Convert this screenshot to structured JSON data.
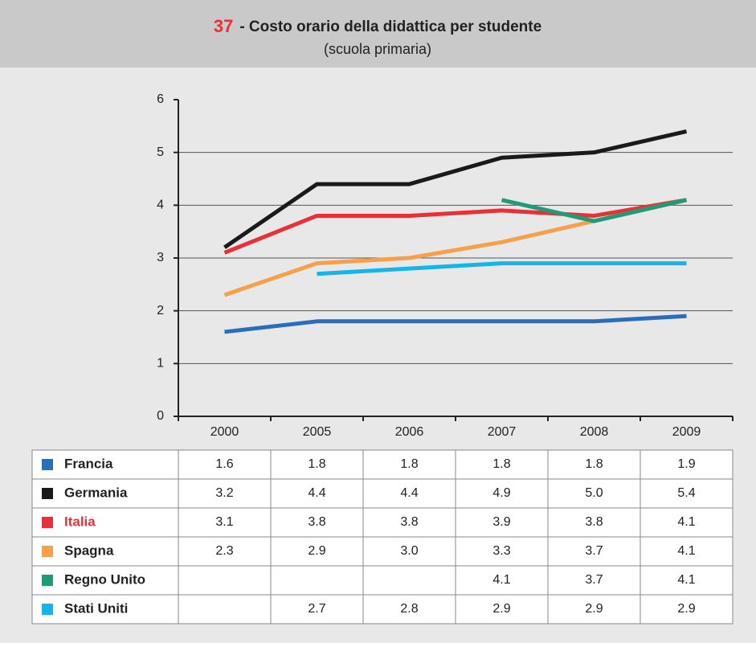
{
  "chart_data": {
    "type": "line",
    "title_number": "37",
    "title": "- Costo orario della didattica per studente",
    "subtitle": "(scuola primaria)",
    "categories": [
      "2000",
      "2005",
      "2006",
      "2007",
      "2008",
      "2009"
    ],
    "ylim": [
      0,
      6
    ],
    "yticks": [
      0,
      1,
      2,
      3,
      4,
      5,
      6
    ],
    "grid": true,
    "series": [
      {
        "name": "Francia",
        "color": "#2a6ebb",
        "values": [
          1.6,
          1.8,
          1.8,
          1.8,
          1.8,
          1.9
        ],
        "value_labels": [
          "1.6",
          "1.8",
          "1.8",
          "1.8",
          "1.8",
          "1.9"
        ]
      },
      {
        "name": "Germania",
        "color": "#1a1a1a",
        "values": [
          3.2,
          4.4,
          4.4,
          4.9,
          5.0,
          5.4
        ],
        "value_labels": [
          "3.2",
          "4.4",
          "4.4",
          "4.9",
          "5.0",
          "5.4"
        ]
      },
      {
        "name": "Italia",
        "color": "#e8303a",
        "highlight": true,
        "values": [
          3.1,
          3.8,
          3.8,
          3.9,
          3.8,
          4.1
        ],
        "value_labels": [
          "3.1",
          "3.8",
          "3.8",
          "3.9",
          "3.8",
          "4.1"
        ]
      },
      {
        "name": "Spagna",
        "color": "#f7a04b",
        "values": [
          2.3,
          2.9,
          3.0,
          3.3,
          3.7,
          4.1
        ],
        "value_labels": [
          "2.3",
          "2.9",
          "3.0",
          "3.3",
          "3.7",
          "4.1"
        ]
      },
      {
        "name": "Regno Unito",
        "color": "#1f9b77",
        "values": [
          null,
          null,
          null,
          4.1,
          3.7,
          4.1
        ],
        "value_labels": [
          null,
          null,
          null,
          "4.1",
          "3.7",
          "4.1"
        ]
      },
      {
        "name": "Stati Uniti",
        "color": "#14b5e8",
        "values": [
          null,
          2.7,
          2.8,
          2.9,
          2.9,
          2.9
        ],
        "value_labels": [
          null,
          "2.7",
          "2.8",
          "2.9",
          "2.9",
          "2.9"
        ]
      }
    ]
  }
}
